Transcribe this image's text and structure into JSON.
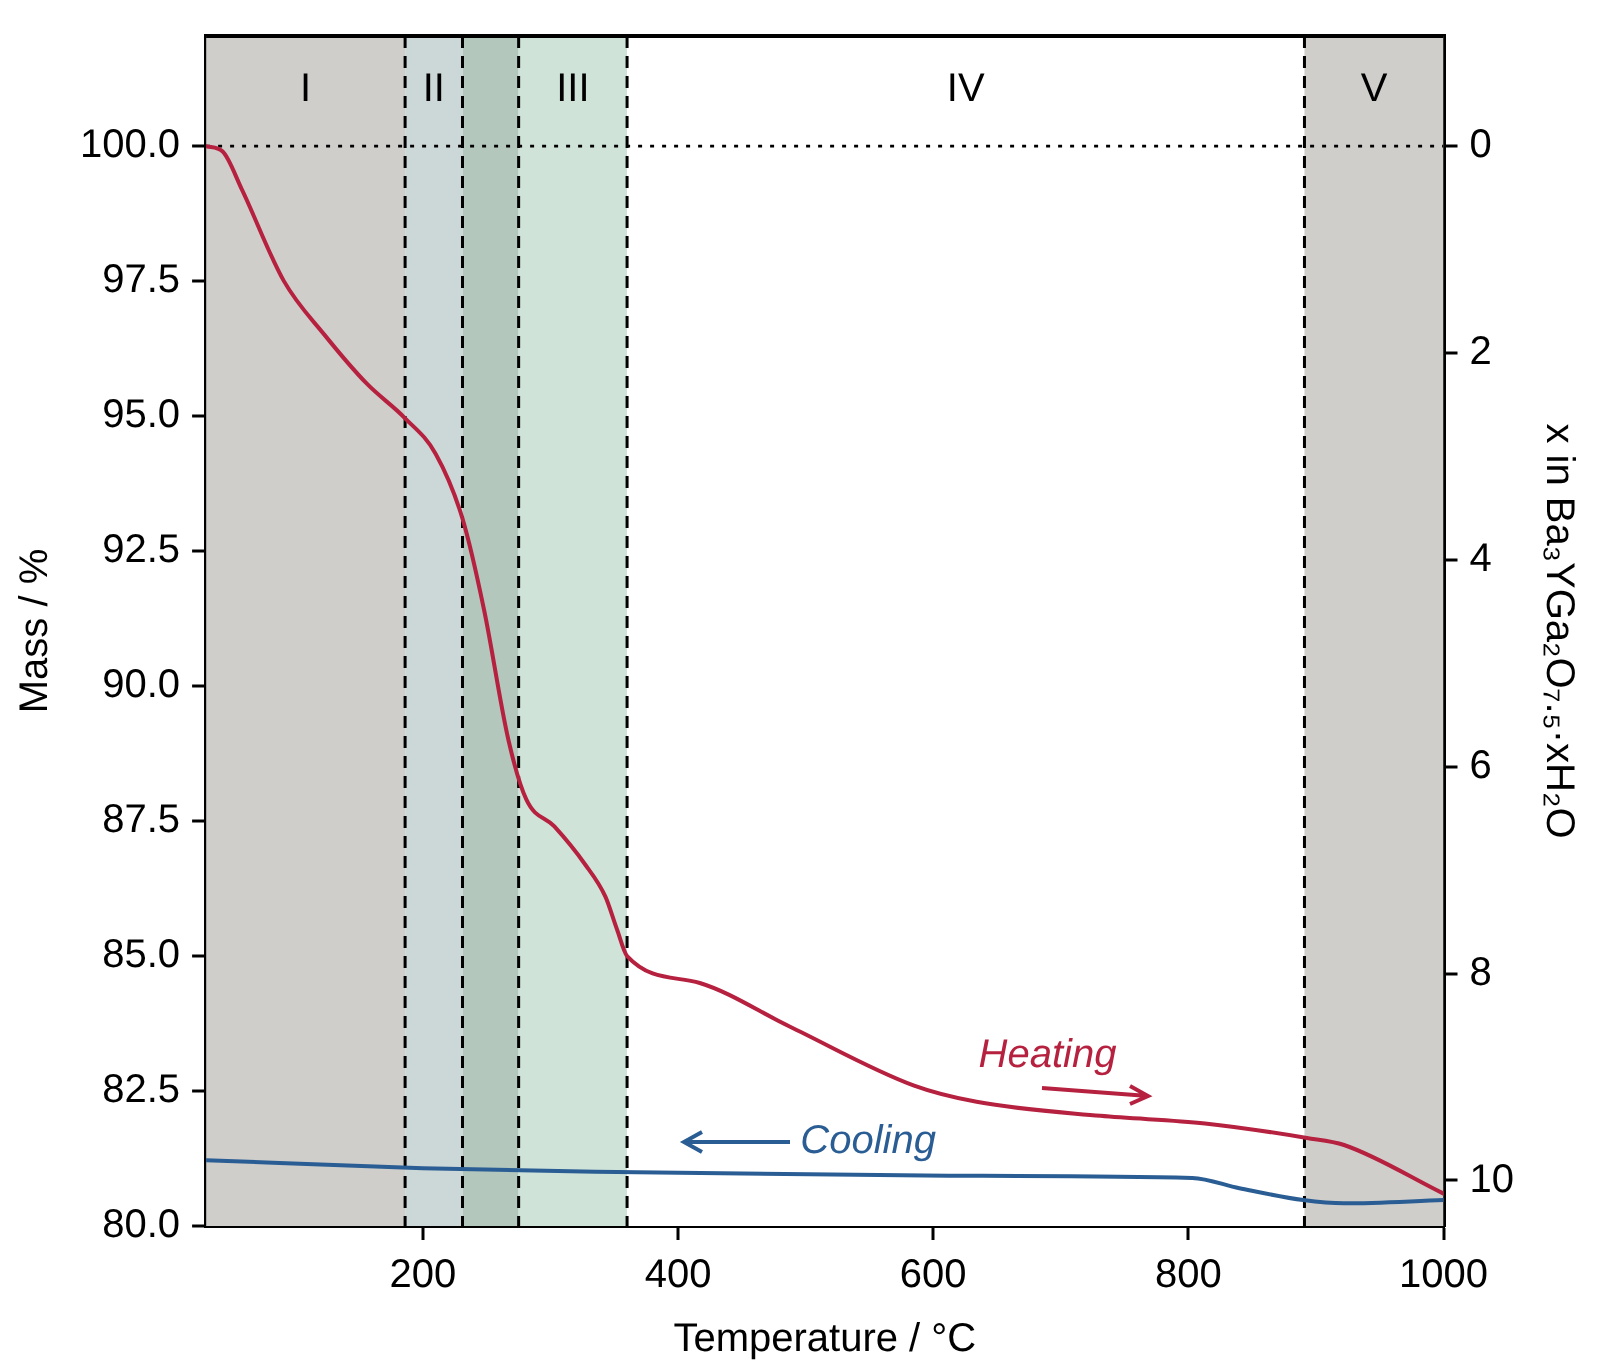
{
  "chart_data": {
    "type": "line",
    "xlabel": "Temperature / °C",
    "ylabel": "Mass / %",
    "y2label": "x in Ba₃YGa₂O₇.₅·xH₂O",
    "series": [
      {
        "name": "Heating",
        "color": "#b5213f",
        "x": [
          30,
          43,
          58,
          91,
          123,
          156,
          186,
          210,
          231,
          248,
          267,
          281,
          303,
          327,
          343,
          352,
          360,
          417,
          487,
          585,
          634,
          731,
          813,
          893,
          922,
          1000
        ],
        "values": [
          100.0,
          99.9,
          99.2,
          97.5,
          96.5,
          95.6,
          94.96,
          94.3,
          93.1,
          91.4,
          89.0,
          87.9,
          87.4,
          86.7,
          86.1,
          85.5,
          85.0,
          84.5,
          83.7,
          82.6,
          82.3,
          82.04,
          81.9,
          81.63,
          81.5,
          80.6
        ]
      },
      {
        "name": "Cooling",
        "color": "#2a5d93",
        "x": [
          30,
          200,
          352,
          612,
          803,
          840,
          890,
          922,
          1000
        ],
        "values": [
          81.22,
          81.07,
          81.0,
          80.93,
          80.89,
          80.7,
          80.48,
          80.42,
          80.48
        ]
      }
    ],
    "xlim": [
      30,
      1000
    ],
    "xticks": [
      200,
      400,
      600,
      800,
      1000
    ],
    "ylim": [
      80,
      102.04
    ],
    "yticks": [
      {
        "value": 80,
        "label": "80.0"
      },
      {
        "value": 82.5,
        "label": "82.5"
      },
      {
        "value": 85,
        "label": "85.0"
      },
      {
        "value": 87.5,
        "label": "87.5"
      },
      {
        "value": 90,
        "label": "90.0"
      },
      {
        "value": 92.5,
        "label": "92.5"
      },
      {
        "value": 95,
        "label": "95.0"
      },
      {
        "value": 97.5,
        "label": "97.5"
      },
      {
        "value": 100,
        "label": "100.0"
      }
    ],
    "y2lim": [
      10.44,
      -1.06
    ],
    "y2ticks": [
      0,
      2,
      4,
      6,
      8,
      10
    ],
    "bands": [
      {
        "axis": "x",
        "from": 30,
        "to": 186,
        "label": "I",
        "color": "#d0cecb"
      },
      {
        "axis": "x",
        "from": 186,
        "to": 231,
        "label": "II",
        "color": "#ccd7d7"
      },
      {
        "axis": "x",
        "from": 231,
        "to": 275,
        "color": "#b3c7bd"
      },
      {
        "axis": "x",
        "from": 275,
        "to": 360,
        "label": "III",
        "color": "#cfe3d8"
      },
      {
        "axis": "x",
        "from": 360,
        "to": 891,
        "label": "IV",
        "color": "#ffffff"
      },
      {
        "axis": "x",
        "from": 891,
        "to": 1000,
        "label": "V",
        "color": "#d0cecb"
      }
    ],
    "ref_lines": [
      {
        "axis": "y",
        "value": 100,
        "line_style": "dotted",
        "color": "#000000"
      }
    ],
    "grid": false,
    "legend": "bottom",
    "marker": "none",
    "line_style": "solid"
  }
}
